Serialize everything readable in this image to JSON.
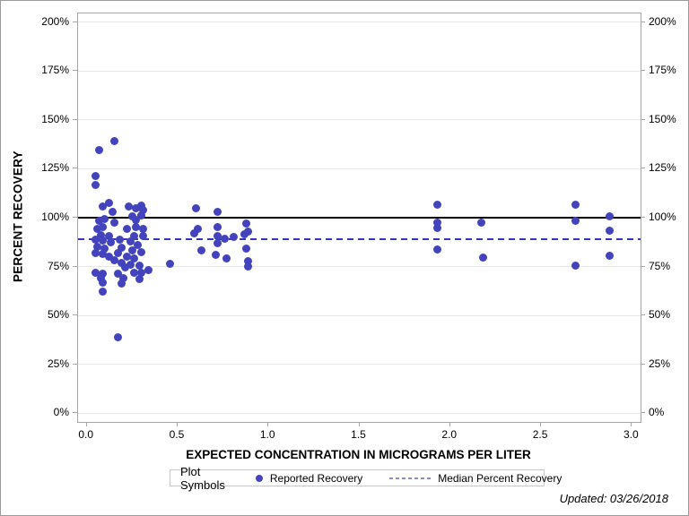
{
  "page": {
    "footer": "Updated: 03/26/2018"
  },
  "colors": {
    "marker": "#4343bd",
    "median_line": "#3333cc",
    "reference_line": "#000000",
    "grid": "#e8e8e8",
    "axis": "#a6a6a6",
    "legend_border": "#c9c9c9",
    "legend_dash_sample": "#8c8cc8"
  },
  "chart_data": {
    "type": "scatter",
    "title": "",
    "xlabel": "EXPECTED CONCENTRATION IN MICROGRAMS PER LITER",
    "ylabel": "PERCENT RECOVERY",
    "xlim": [
      0,
      3.0
    ],
    "ylim": [
      0,
      200
    ],
    "x_ticks": [
      0.0,
      0.5,
      1.0,
      1.5,
      2.0,
      2.5,
      3.0
    ],
    "y_ticks": [
      0,
      25,
      50,
      75,
      100,
      125,
      150,
      175,
      200
    ],
    "y_tick_suffix": "%",
    "grid": "horizontal-only",
    "y_axis_labels_on_both_sides": true,
    "reference_lines": [
      {
        "name": "100-percent-reference-line",
        "value": 100,
        "style": "solid",
        "color": "#000000"
      },
      {
        "name": "median-percent-recovery-line",
        "value": 89.2,
        "style": "dashed",
        "color": "#3333cc"
      }
    ],
    "legend": {
      "title": "Plot Symbols",
      "position": "bottom",
      "entries": [
        {
          "label": "Reported Recovery",
          "type": "marker"
        },
        {
          "label": "Median Percent Recovery",
          "type": "dashed-line"
        }
      ]
    },
    "series": [
      {
        "name": "Reported Recovery",
        "marker": "circle",
        "color": "#4343bd",
        "points": [
          [
            0.07,
            134.5
          ],
          [
            0.15,
            139.0
          ],
          [
            0.05,
            121.5
          ],
          [
            0.05,
            116.5
          ],
          [
            0.09,
            105.5
          ],
          [
            0.12,
            107.5
          ],
          [
            0.14,
            103.0
          ],
          [
            0.23,
            105.8
          ],
          [
            0.27,
            104.8
          ],
          [
            0.3,
            106.2
          ],
          [
            0.31,
            103.8
          ],
          [
            0.25,
            100.5
          ],
          [
            0.27,
            99.0
          ],
          [
            0.3,
            101.2
          ],
          [
            0.07,
            98.3
          ],
          [
            0.1,
            99.5
          ],
          [
            0.15,
            97.3
          ],
          [
            0.06,
            94.2
          ],
          [
            0.09,
            95.0
          ],
          [
            0.08,
            91.2
          ],
          [
            0.12,
            90.4
          ],
          [
            0.05,
            88.9
          ],
          [
            0.09,
            88.1
          ],
          [
            0.13,
            87.4
          ],
          [
            0.18,
            88.9
          ],
          [
            0.22,
            94.4
          ],
          [
            0.27,
            95.3
          ],
          [
            0.31,
            94.4
          ],
          [
            0.26,
            90.7
          ],
          [
            0.31,
            90.7
          ],
          [
            0.24,
            87.7
          ],
          [
            0.28,
            86.2
          ],
          [
            0.19,
            84.6
          ],
          [
            0.06,
            85.1
          ],
          [
            0.1,
            84.3
          ],
          [
            0.05,
            82.0
          ],
          [
            0.09,
            81.3
          ],
          [
            0.17,
            82.0
          ],
          [
            0.25,
            83.1
          ],
          [
            0.3,
            82.3
          ],
          [
            0.12,
            79.9
          ],
          [
            0.15,
            78.2
          ],
          [
            0.19,
            76.7
          ],
          [
            0.22,
            80.0
          ],
          [
            0.26,
            79.3
          ],
          [
            0.24,
            76.1
          ],
          [
            0.29,
            75.3
          ],
          [
            0.21,
            74.6
          ],
          [
            0.34,
            73.1
          ],
          [
            0.05,
            71.8
          ],
          [
            0.09,
            71.4
          ],
          [
            0.08,
            69.3
          ],
          [
            0.09,
            67.0
          ],
          [
            0.17,
            71.5
          ],
          [
            0.2,
            69.1
          ],
          [
            0.19,
            66.5
          ],
          [
            0.26,
            71.7
          ],
          [
            0.3,
            71.8
          ],
          [
            0.29,
            68.5
          ],
          [
            0.09,
            62.4
          ],
          [
            0.17,
            39.0
          ],
          [
            0.46,
            76.5
          ],
          [
            0.6,
            104.7
          ],
          [
            0.72,
            103.2
          ],
          [
            0.61,
            94.1
          ],
          [
            0.59,
            91.9
          ],
          [
            0.72,
            95.3
          ],
          [
            0.72,
            90.7
          ],
          [
            0.72,
            87.0
          ],
          [
            0.76,
            89.2
          ],
          [
            0.81,
            90.0
          ],
          [
            0.63,
            83.1
          ],
          [
            0.71,
            80.8
          ],
          [
            0.77,
            79.3
          ],
          [
            0.88,
            96.8
          ],
          [
            0.87,
            91.5
          ],
          [
            0.89,
            92.8
          ],
          [
            0.88,
            84.2
          ],
          [
            0.89,
            78.0
          ],
          [
            0.89,
            75.2
          ],
          [
            1.93,
            106.8
          ],
          [
            1.93,
            97.3
          ],
          [
            1.93,
            94.6
          ],
          [
            1.93,
            83.7
          ],
          [
            2.17,
            97.7
          ],
          [
            2.18,
            79.5
          ],
          [
            2.69,
            106.8
          ],
          [
            2.69,
            98.5
          ],
          [
            2.69,
            75.3
          ],
          [
            2.88,
            100.5
          ],
          [
            2.88,
            93.2
          ],
          [
            2.88,
            80.7
          ]
        ]
      }
    ]
  }
}
